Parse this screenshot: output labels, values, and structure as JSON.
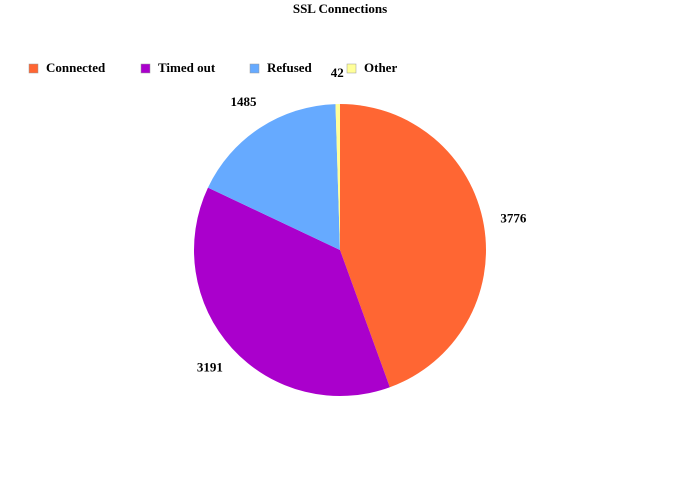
{
  "chart_data": {
    "type": "pie",
    "title": "SSL Connections",
    "categories": [
      "Connected",
      "Timed out",
      "Refused",
      "Other"
    ],
    "values": [
      3776,
      3191,
      1485,
      42
    ],
    "colors": [
      "#ff6633",
      "#aa00cc",
      "#66aaff",
      "#ffff99"
    ],
    "legend": "top-left"
  }
}
